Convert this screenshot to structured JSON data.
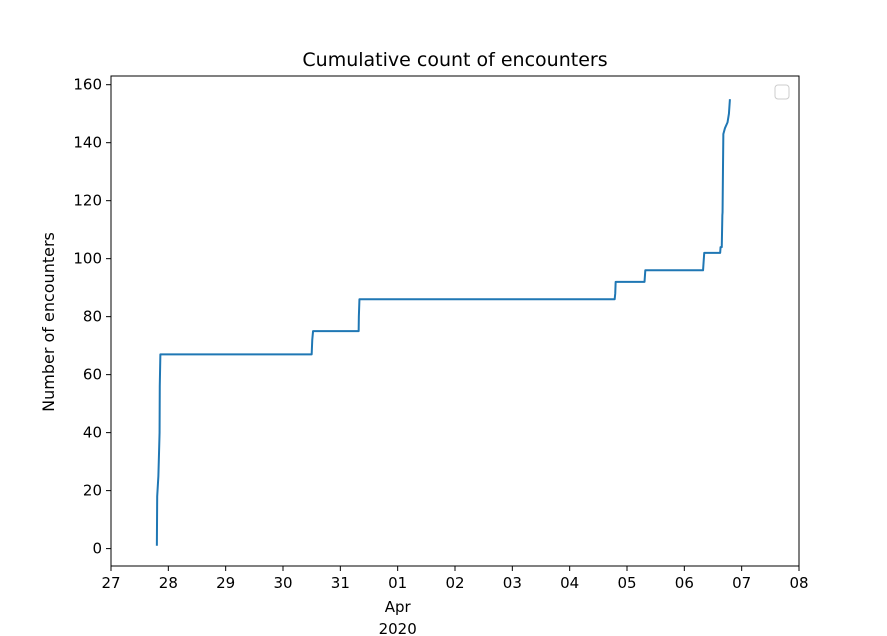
{
  "chart_data": {
    "type": "line",
    "title": "Cumulative count of encounters",
    "xlabel": "",
    "ylabel": "Number of encounters",
    "x_axis_kind": "date",
    "xlim": [
      "2020-03-27T00:00",
      "2020-04-08T00:00"
    ],
    "ylim": [
      -6,
      163
    ],
    "x_ticks": [
      {
        "label": "27",
        "date": "2020-03-27"
      },
      {
        "label": "28",
        "date": "2020-03-28"
      },
      {
        "label": "29",
        "date": "2020-03-29"
      },
      {
        "label": "30",
        "date": "2020-03-30"
      },
      {
        "label": "31",
        "date": "2020-03-31"
      },
      {
        "label": "01",
        "sublabel": "Apr",
        "sublabel2": "2020",
        "date": "2020-04-01"
      },
      {
        "label": "02",
        "date": "2020-04-02"
      },
      {
        "label": "03",
        "date": "2020-04-03"
      },
      {
        "label": "04",
        "date": "2020-04-04"
      },
      {
        "label": "05",
        "date": "2020-04-05"
      },
      {
        "label": "06",
        "date": "2020-04-06"
      },
      {
        "label": "07",
        "date": "2020-04-07"
      },
      {
        "label": "08",
        "date": "2020-04-08"
      }
    ],
    "y_ticks": [
      0,
      20,
      40,
      60,
      80,
      100,
      120,
      140,
      160
    ],
    "grid": false,
    "legend": {
      "placement": "top-right",
      "entries": []
    },
    "series": [
      {
        "color": "#1f77b4",
        "points": [
          {
            "x": "2020-03-27T19:12",
            "y": 1
          },
          {
            "x": "2020-03-27T19:20",
            "y": 18
          },
          {
            "x": "2020-03-27T19:50",
            "y": 25
          },
          {
            "x": "2020-03-27T20:10",
            "y": 35
          },
          {
            "x": "2020-03-27T20:20",
            "y": 40
          },
          {
            "x": "2020-03-27T20:25",
            "y": 56
          },
          {
            "x": "2020-03-27T20:40",
            "y": 67
          },
          {
            "x": "2020-03-30T12:00",
            "y": 67
          },
          {
            "x": "2020-03-30T12:15",
            "y": 72
          },
          {
            "x": "2020-03-30T12:35",
            "y": 75
          },
          {
            "x": "2020-03-31T07:40",
            "y": 75
          },
          {
            "x": "2020-03-31T07:45",
            "y": 80
          },
          {
            "x": "2020-03-31T08:00",
            "y": 86
          },
          {
            "x": "2020-04-04T18:50",
            "y": 86
          },
          {
            "x": "2020-04-04T19:05",
            "y": 88
          },
          {
            "x": "2020-04-04T19:15",
            "y": 92
          },
          {
            "x": "2020-04-05T07:20",
            "y": 92
          },
          {
            "x": "2020-04-05T07:40",
            "y": 96
          },
          {
            "x": "2020-04-06T07:50",
            "y": 96
          },
          {
            "x": "2020-04-06T08:00",
            "y": 98
          },
          {
            "x": "2020-04-06T08:20",
            "y": 102
          },
          {
            "x": "2020-04-06T15:00",
            "y": 102
          },
          {
            "x": "2020-04-06T15:10",
            "y": 104
          },
          {
            "x": "2020-04-06T15:40",
            "y": 104
          },
          {
            "x": "2020-04-06T15:55",
            "y": 115
          },
          {
            "x": "2020-04-06T16:00",
            "y": 116
          },
          {
            "x": "2020-04-06T16:10",
            "y": 130
          },
          {
            "x": "2020-04-06T16:20",
            "y": 143
          },
          {
            "x": "2020-04-06T17:00",
            "y": 145
          },
          {
            "x": "2020-04-06T18:05",
            "y": 147
          },
          {
            "x": "2020-04-06T18:40",
            "y": 150
          },
          {
            "x": "2020-04-06T19:05",
            "y": 155
          }
        ]
      }
    ]
  }
}
